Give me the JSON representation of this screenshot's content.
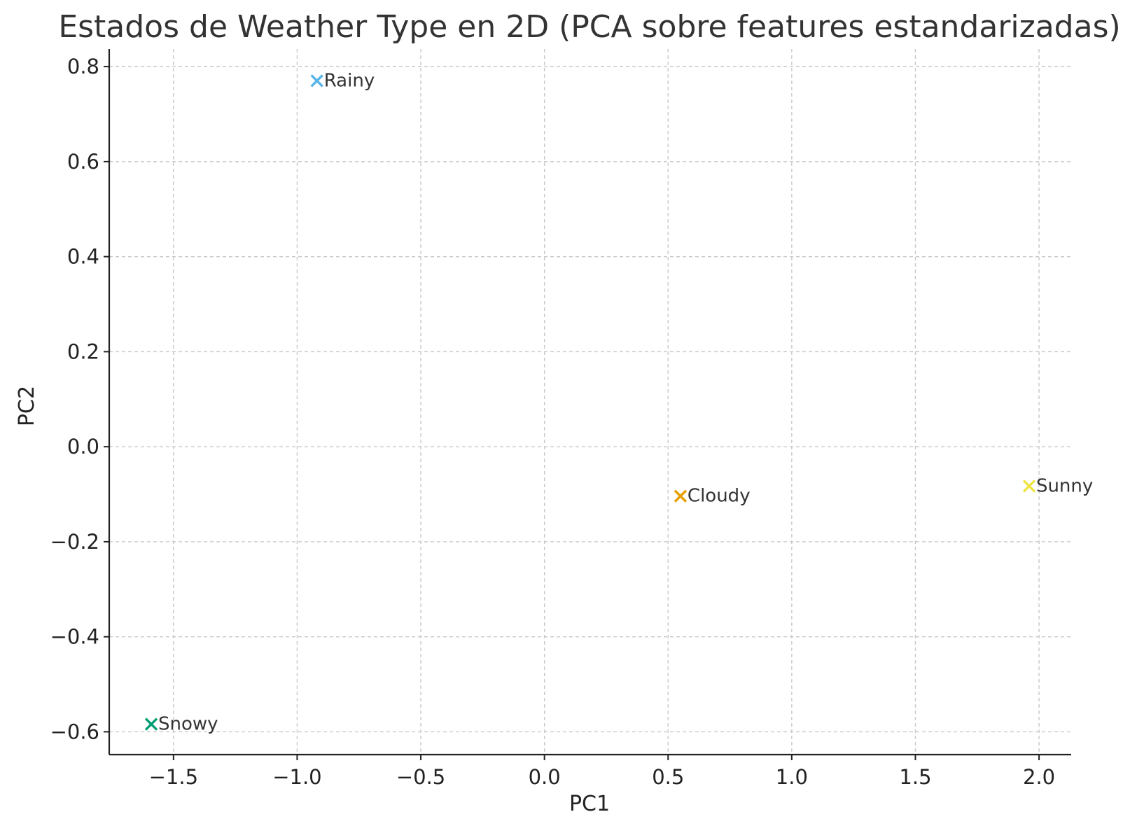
{
  "chart_data": {
    "type": "scatter",
    "title": "Estados de Weather Type en 2D (PCA sobre features estandarizadas)",
    "xlabel": "PC1",
    "ylabel": "PC2",
    "xlim": [
      -1.76,
      2.13
    ],
    "ylim": [
      -0.648,
      0.837
    ],
    "xticks": [
      -1.5,
      -1.0,
      -0.5,
      0.0,
      0.5,
      1.0,
      1.5,
      2.0
    ],
    "xtick_labels": [
      "−1.5",
      "−1.0",
      "−0.5",
      "0.0",
      "0.5",
      "1.0",
      "1.5",
      "2.0"
    ],
    "yticks": [
      -0.6,
      -0.4,
      -0.2,
      0.0,
      0.2,
      0.4,
      0.6,
      0.8
    ],
    "ytick_labels": [
      "−0.6",
      "−0.4",
      "−0.2",
      "0.0",
      "0.2",
      "0.4",
      "0.6",
      "0.8"
    ],
    "grid": true,
    "marker": "x",
    "points": [
      {
        "label": "Rainy",
        "x": -0.92,
        "y": 0.77,
        "color": "#56B4E9"
      },
      {
        "label": "Cloudy",
        "x": 0.55,
        "y": -0.104,
        "color": "#E69F00"
      },
      {
        "label": "Sunny",
        "x": 1.96,
        "y": -0.083,
        "color": "#F0E442"
      },
      {
        "label": "Snowy",
        "x": -1.59,
        "y": -0.584,
        "color": "#009E73"
      }
    ]
  }
}
